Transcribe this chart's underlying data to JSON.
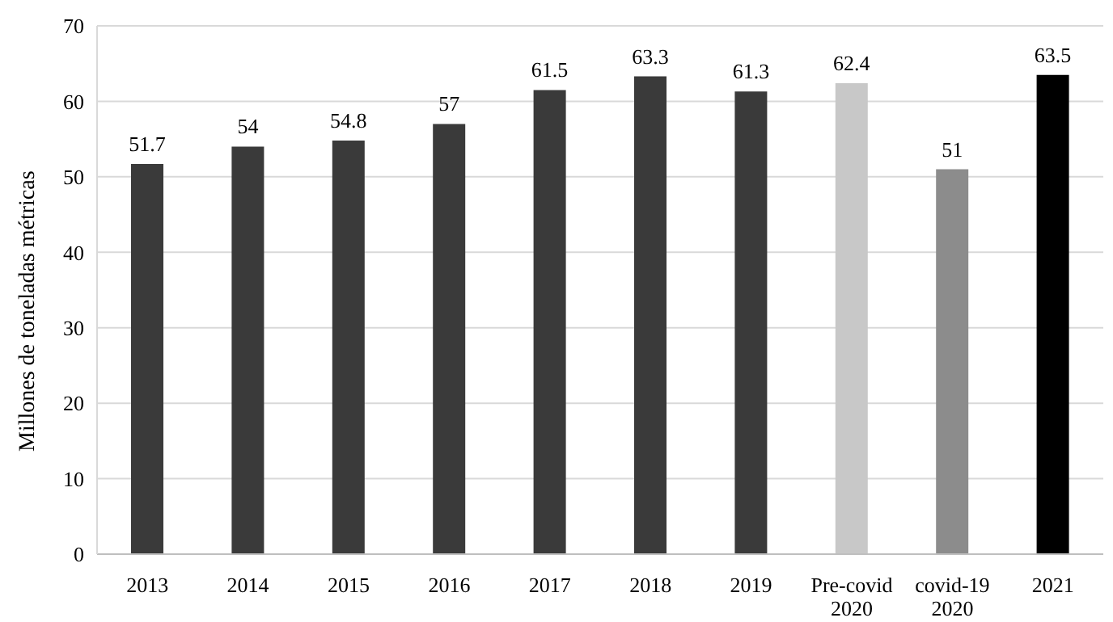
{
  "chart_data": {
    "type": "bar",
    "ylabel": "Millones de toneladas métricas",
    "categories": [
      "2013",
      "2014",
      "2015",
      "2016",
      "2017",
      "2018",
      "2019",
      "Pre-covid 2020",
      "covid-19 2020",
      "2021"
    ],
    "values": [
      51.7,
      54,
      54.8,
      57,
      61.5,
      63.3,
      61.3,
      62.4,
      51,
      63.5
    ],
    "colors": [
      "#3a3a3a",
      "#3a3a3a",
      "#3a3a3a",
      "#3a3a3a",
      "#3a3a3a",
      "#3a3a3a",
      "#3a3a3a",
      "#c8c8c8",
      "#8c8c8c",
      "#000000"
    ],
    "ylim": [
      0,
      70
    ],
    "yticks": [
      0,
      10,
      20,
      30,
      40,
      50,
      60,
      70
    ],
    "grid": "y",
    "data_labels": true
  }
}
